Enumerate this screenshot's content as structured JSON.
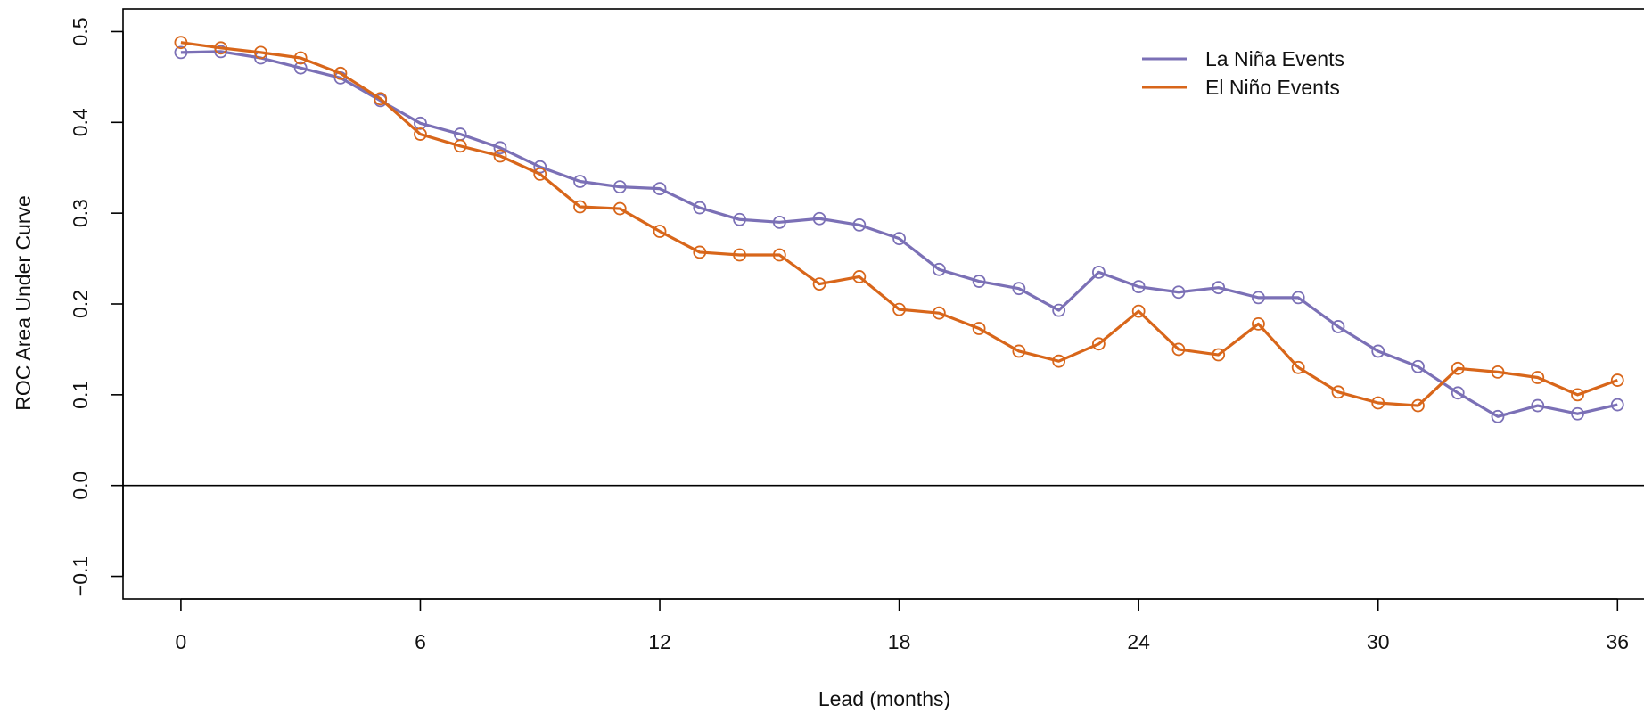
{
  "chart_data": {
    "type": "line",
    "title": "",
    "xlabel": "Lead (months)",
    "ylabel": "ROC Area Under Curve",
    "xlim": [
      -1.45,
      37.2
    ],
    "ylim": [
      -0.125,
      0.525
    ],
    "xticks": [
      0,
      6,
      12,
      18,
      24,
      30,
      36
    ],
    "yticks": [
      -0.1,
      0.0,
      0.1,
      0.2,
      0.3,
      0.4,
      0.5
    ],
    "ytick_labels": [
      "−0.1",
      "0.0",
      "0.1",
      "0.2",
      "0.3",
      "0.4",
      "0.5"
    ],
    "reference_line_y": 0.0,
    "grid": false,
    "legend": {
      "position": "top-right"
    },
    "marker": "open-circle",
    "x": [
      0,
      1,
      2,
      3,
      4,
      5,
      6,
      7,
      8,
      9,
      10,
      11,
      12,
      13,
      14,
      15,
      16,
      17,
      18,
      19,
      20,
      21,
      22,
      23,
      24,
      25,
      26,
      27,
      28,
      29,
      30,
      31,
      32,
      33,
      34,
      35,
      36
    ],
    "series": [
      {
        "name": "La Niña Events",
        "color": "#7b70b6",
        "values": [
          0.477,
          0.478,
          0.471,
          0.46,
          0.449,
          0.424,
          0.399,
          0.387,
          0.372,
          0.351,
          0.335,
          0.329,
          0.327,
          0.306,
          0.293,
          0.29,
          0.294,
          0.287,
          0.272,
          0.238,
          0.225,
          0.217,
          0.193,
          0.235,
          0.219,
          0.213,
          0.218,
          0.207,
          0.207,
          0.175,
          0.148,
          0.131,
          0.102,
          0.076,
          0.088,
          0.079,
          0.089
        ]
      },
      {
        "name": "El Niño Events",
        "color": "#d8661a",
        "values": [
          0.488,
          0.482,
          0.477,
          0.471,
          0.454,
          0.426,
          0.387,
          0.374,
          0.363,
          0.343,
          0.307,
          0.305,
          0.28,
          0.257,
          0.254,
          0.254,
          0.222,
          0.23,
          0.194,
          0.19,
          0.173,
          0.148,
          0.137,
          0.156,
          0.192,
          0.15,
          0.144,
          0.178,
          0.13,
          0.103,
          0.091,
          0.088,
          0.129,
          0.125,
          0.119,
          0.1,
          0.116
        ]
      }
    ]
  }
}
